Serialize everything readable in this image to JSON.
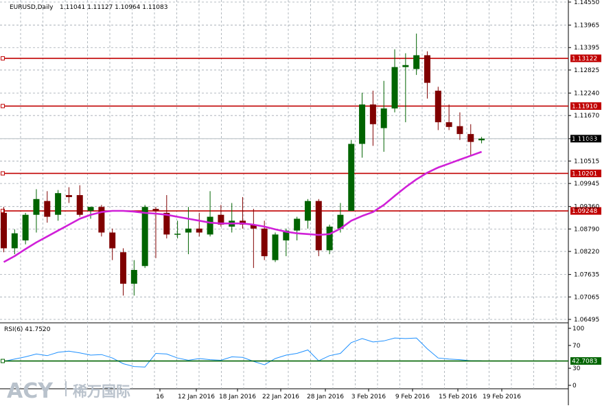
{
  "header": {
    "symbol": "EURUSD,Daily",
    "ohlc": "1.11041 1.11127 1.10964 1.11083"
  },
  "rsi": {
    "label": "RSI(6) 41.7520",
    "value_label": "42.7083",
    "level": 42.7083,
    "ticks": [
      "100",
      "70",
      "30",
      "0"
    ]
  },
  "watermark": {
    "brand": "ACY",
    "text": "稀万国际",
    "color": "#b9c2cc"
  },
  "colors": {
    "bull": "#006400",
    "bear": "#800000",
    "ma": "#d020d8",
    "level": "#c00000",
    "rsi_line": "#1e90ff",
    "rsi_level": "#006400",
    "grid": "#a0a8b0"
  },
  "chart_data": {
    "type": "candlestick",
    "title": "EURUSD,Daily",
    "y_ticks": [
      "1.14550",
      "1.13965",
      "1.13395",
      "1.12825",
      "1.12240",
      "1.11670",
      "1.11083",
      "1.10515",
      "1.09945",
      "1.09360",
      "1.08790",
      "1.08220",
      "1.07635",
      "1.07065",
      "1.06495"
    ],
    "x_labels": [
      "16",
      "12 Jan 2016",
      "18 Jan 2016",
      "22 Jan 2016",
      "28 Jan 2016",
      "3 Feb 2016",
      "9 Feb 2016",
      "15 Feb 2016",
      "19 Feb 2016"
    ],
    "levels": [
      {
        "label": "1.13122",
        "value": 1.13122
      },
      {
        "label": "1.11910",
        "value": 1.1191
      },
      {
        "label": "1.10201",
        "value": 1.10201
      },
      {
        "label": "1.09248",
        "value": 1.09248
      }
    ],
    "current_price": {
      "label": "1.11083",
      "value": 1.11083
    },
    "candles": [
      {
        "o": 1.092,
        "h": 1.0935,
        "l": 1.082,
        "c": 1.083
      },
      {
        "o": 1.083,
        "h": 1.0878,
        "l": 1.0815,
        "c": 1.0868
      },
      {
        "o": 1.085,
        "h": 1.092,
        "l": 1.084,
        "c": 1.0915
      },
      {
        "o": 1.0915,
        "h": 1.098,
        "l": 1.087,
        "c": 1.0955
      },
      {
        "o": 1.095,
        "h": 1.0975,
        "l": 1.0895,
        "c": 1.091
      },
      {
        "o": 1.0915,
        "h": 1.0978,
        "l": 1.09,
        "c": 1.097
      },
      {
        "o": 1.0965,
        "h": 1.0985,
        "l": 1.0945,
        "c": 1.096
      },
      {
        "o": 1.0965,
        "h": 1.099,
        "l": 1.091,
        "c": 1.0915
      },
      {
        "o": 1.0925,
        "h": 1.0935,
        "l": 1.0905,
        "c": 1.0935
      },
      {
        "o": 1.0935,
        "h": 1.094,
        "l": 1.086,
        "c": 1.087
      },
      {
        "o": 1.087,
        "h": 1.088,
        "l": 1.08,
        "c": 1.083
      },
      {
        "o": 1.082,
        "h": 1.083,
        "l": 1.071,
        "c": 1.074
      },
      {
        "o": 1.074,
        "h": 1.08,
        "l": 1.071,
        "c": 1.0775
      },
      {
        "o": 1.0785,
        "h": 1.094,
        "l": 1.078,
        "c": 1.0935
      },
      {
        "o": 1.093,
        "h": 1.0935,
        "l": 1.0805,
        "c": 1.0925
      },
      {
        "o": 1.092,
        "h": 1.0965,
        "l": 1.0855,
        "c": 1.0865
      },
      {
        "o": 1.0865,
        "h": 1.09,
        "l": 1.0855,
        "c": 1.0867
      },
      {
        "o": 1.087,
        "h": 1.0935,
        "l": 1.0815,
        "c": 1.088
      },
      {
        "o": 1.088,
        "h": 1.092,
        "l": 1.086,
        "c": 1.087
      },
      {
        "o": 1.0865,
        "h": 1.0975,
        "l": 1.086,
        "c": 1.091
      },
      {
        "o": 1.0915,
        "h": 1.094,
        "l": 1.0885,
        "c": 1.089
      },
      {
        "o": 1.0885,
        "h": 1.0945,
        "l": 1.087,
        "c": 1.09
      },
      {
        "o": 1.09,
        "h": 1.096,
        "l": 1.088,
        "c": 1.089
      },
      {
        "o": 1.089,
        "h": 1.093,
        "l": 1.078,
        "c": 1.088
      },
      {
        "o": 1.088,
        "h": 1.09,
        "l": 1.08,
        "c": 1.081
      },
      {
        "o": 1.08,
        "h": 1.087,
        "l": 1.0795,
        "c": 1.0865
      },
      {
        "o": 1.085,
        "h": 1.088,
        "l": 1.081,
        "c": 1.0875
      },
      {
        "o": 1.0875,
        "h": 1.091,
        "l": 1.085,
        "c": 1.0905
      },
      {
        "o": 1.09,
        "h": 1.0955,
        "l": 1.088,
        "c": 1.095
      },
      {
        "o": 1.095,
        "h": 1.0955,
        "l": 1.081,
        "c": 1.0825
      },
      {
        "o": 1.0825,
        "h": 1.089,
        "l": 1.0815,
        "c": 1.0885
      },
      {
        "o": 1.088,
        "h": 1.0945,
        "l": 1.087,
        "c": 1.0915
      },
      {
        "o": 1.0925,
        "h": 1.1105,
        "l": 1.0925,
        "c": 1.1095
      },
      {
        "o": 1.1095,
        "h": 1.1225,
        "l": 1.106,
        "c": 1.1195
      },
      {
        "o": 1.1195,
        "h": 1.123,
        "l": 1.109,
        "c": 1.1145
      },
      {
        "o": 1.1135,
        "h": 1.1255,
        "l": 1.1075,
        "c": 1.1185
      },
      {
        "o": 1.1185,
        "h": 1.1335,
        "l": 1.1175,
        "c": 1.129
      },
      {
        "o": 1.129,
        "h": 1.1325,
        "l": 1.115,
        "c": 1.1295
      },
      {
        "o": 1.1285,
        "h": 1.1375,
        "l": 1.127,
        "c": 1.132
      },
      {
        "o": 1.132,
        "h": 1.133,
        "l": 1.121,
        "c": 1.125
      },
      {
        "o": 1.123,
        "h": 1.124,
        "l": 1.113,
        "c": 1.115
      },
      {
        "o": 1.115,
        "h": 1.1195,
        "l": 1.113,
        "c": 1.1138
      },
      {
        "o": 1.114,
        "h": 1.1175,
        "l": 1.1105,
        "c": 1.112
      },
      {
        "o": 1.112,
        "h": 1.1145,
        "l": 1.1065,
        "c": 1.11
      },
      {
        "o": 1.11041,
        "h": 1.11127,
        "l": 1.10964,
        "c": 1.11083
      }
    ],
    "ma": [
      1.0795,
      1.081,
      1.0828,
      1.0845,
      1.086,
      1.0875,
      1.089,
      1.0905,
      1.0915,
      1.0922,
      1.0925,
      1.0925,
      1.0923,
      1.092,
      1.0918,
      1.0915,
      1.091,
      1.0905,
      1.09,
      1.0895,
      1.0893,
      1.0893,
      1.0893,
      1.089,
      1.0885,
      1.0878,
      1.0872,
      1.0868,
      1.0866,
      1.0864,
      1.0866,
      1.088,
      1.09,
      1.0912,
      1.0922,
      1.094,
      1.0963,
      1.0985,
      1.1005,
      1.1022,
      1.1035,
      1.1045,
      1.1055,
      1.1065,
      1.1075
    ],
    "rsi_values": [
      42,
      46,
      50,
      55,
      52,
      58,
      60,
      57,
      53,
      54,
      48,
      38,
      33,
      32,
      56,
      55,
      48,
      44,
      47,
      45,
      44,
      50,
      49,
      42,
      36,
      47,
      53,
      56,
      62,
      43,
      52,
      56,
      75,
      82,
      76,
      78,
      83,
      82,
      83,
      64,
      48,
      46,
      45,
      43,
      43
    ]
  }
}
